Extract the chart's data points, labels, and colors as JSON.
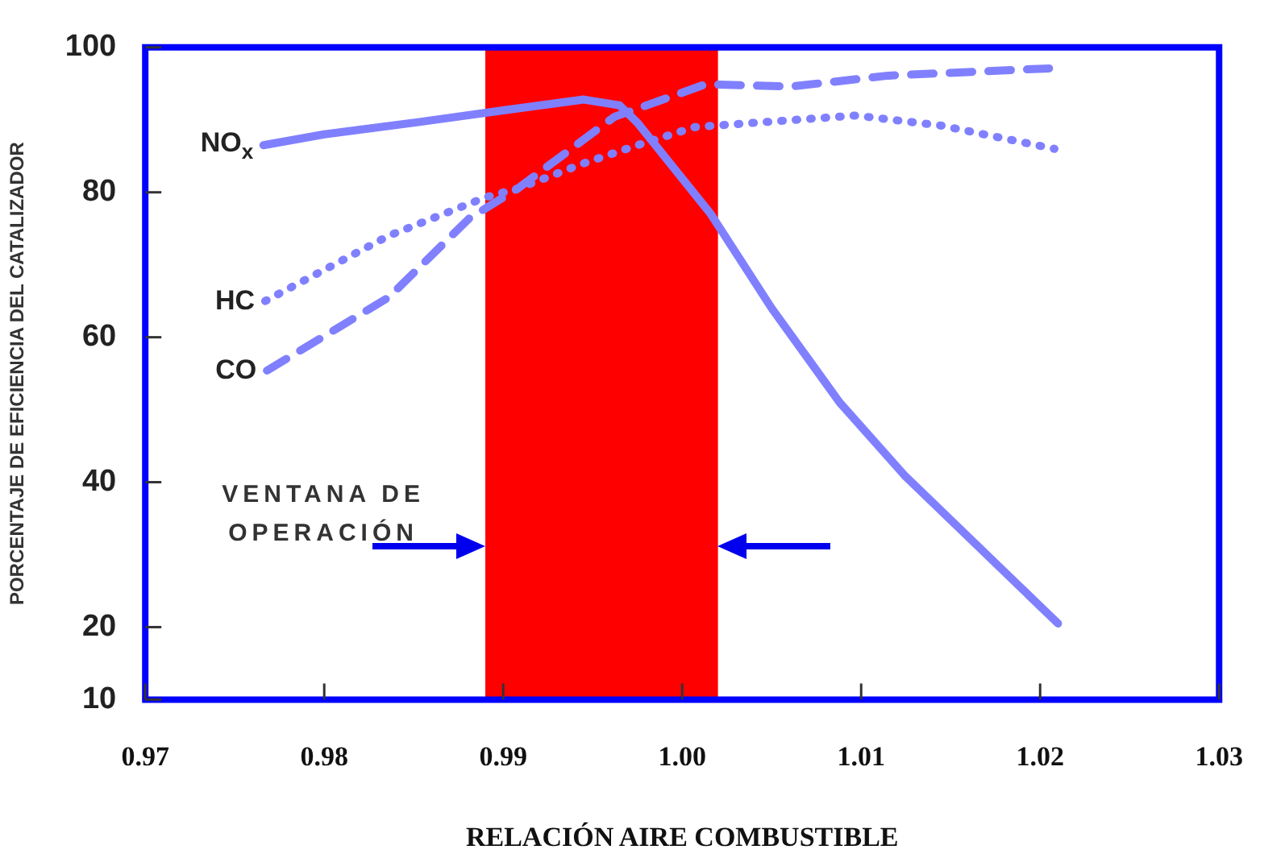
{
  "chart_data": {
    "type": "line",
    "xlabel": "RELACIÓN AIRE COMBUSTIBLE",
    "ylabel": "PORCENTAJE DE EFICIENCIA DEL CATALIZADOR",
    "xlim": [
      0.97,
      1.03
    ],
    "xticks": [
      0.97,
      0.98,
      0.99,
      "1.00",
      1.01,
      1.02,
      1.03
    ],
    "ylim": [
      10,
      100
    ],
    "yticks": [
      10,
      20,
      40,
      60,
      80,
      100
    ],
    "grid": false,
    "legend": false,
    "marker": "none",
    "bands": [
      {
        "axis": "x",
        "from": 0.989,
        "to": 1.002,
        "label": "VENTANA DE\nOPERACIÓN",
        "color": "#ff0000"
      }
    ],
    "series": [
      {
        "name": "NO$_{x}$",
        "color": "#8080ff",
        "line_style": "solid",
        "x": [
          0.9766,
          0.98,
          0.985,
          0.99,
          0.9945,
          0.9965,
          0.9975,
          1.0016,
          1.005,
          1.0088,
          1.0124,
          1.021
        ],
        "values": [
          86.5,
          88,
          89.6,
          91.3,
          92.8,
          92,
          89.6,
          77,
          64,
          51,
          41,
          20.5
        ]
      },
      {
        "name": "HC",
        "color": "#8080ff",
        "line_style": "dotted",
        "x": [
          0.9767,
          0.9836,
          0.989,
          0.9908,
          0.9945,
          0.9975,
          1.0007,
          1.0097,
          1.0145,
          1.0208
        ],
        "values": [
          65,
          74,
          79.3,
          80.5,
          84,
          86.5,
          89,
          90.6,
          89.2,
          86
        ]
      },
      {
        "name": "CO",
        "color": "#8080ff",
        "line_style": "dashed",
        "x": [
          0.9768,
          0.9836,
          0.9881,
          0.9908,
          0.9962,
          1.0013,
          1.0061,
          1.0115,
          1.0205
        ],
        "values": [
          55.4,
          65.5,
          76.4,
          80.5,
          90.4,
          94.9,
          94.6,
          96.1,
          97.1
        ]
      }
    ]
  }
}
